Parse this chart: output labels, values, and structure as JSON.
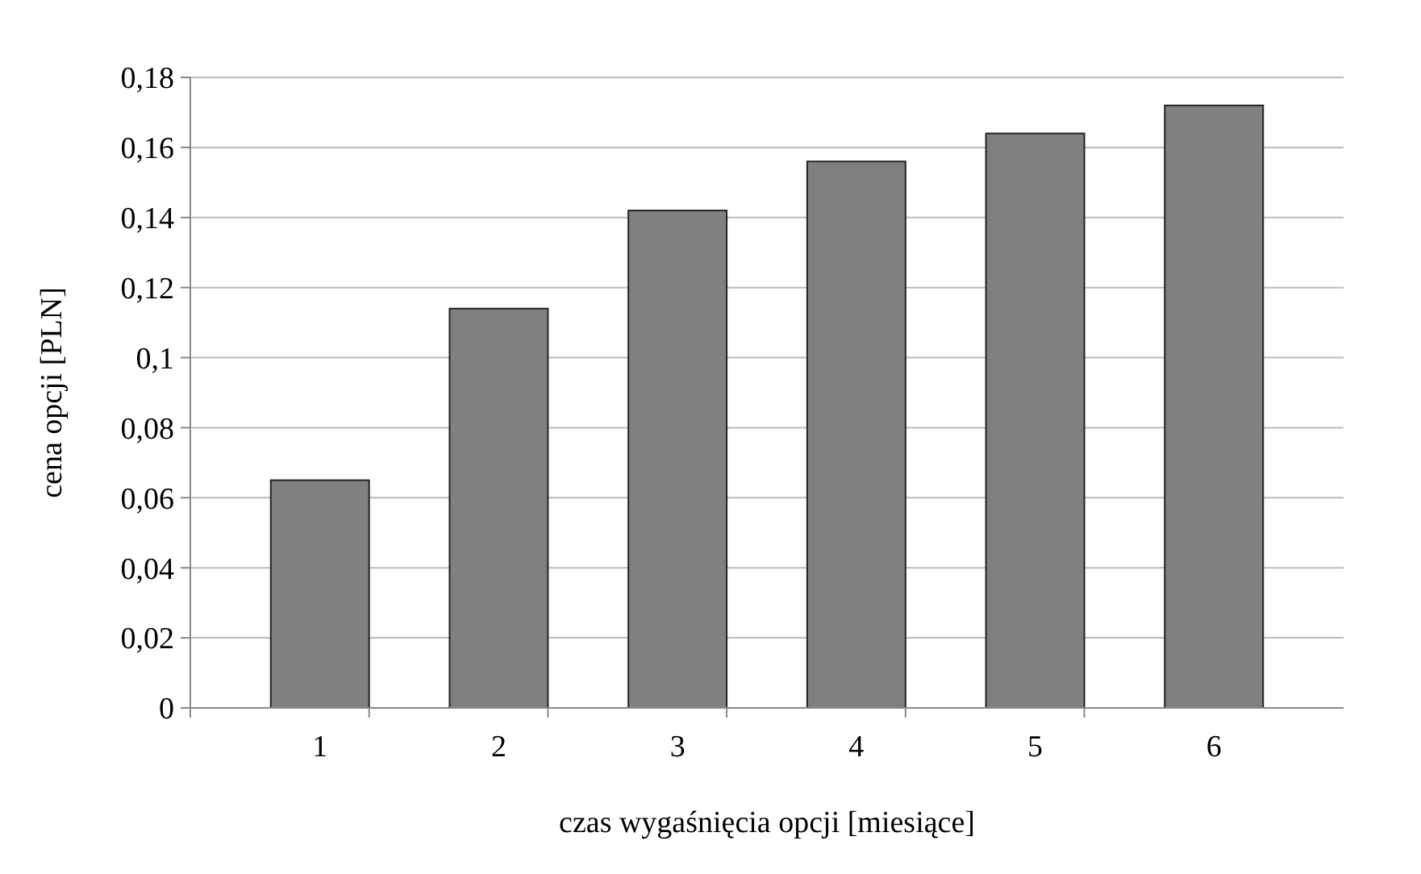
{
  "chart_data": {
    "type": "bar",
    "xlabel": "czas wygaśnięcia opcji [miesiące]",
    "ylabel": "cena opcji [PLN]",
    "categories": [
      "1",
      "2",
      "3",
      "4",
      "5",
      "6"
    ],
    "values": [
      0.065,
      0.114,
      0.142,
      0.156,
      0.164,
      0.172
    ],
    "color": "#808080",
    "ylim": [
      0,
      0.18
    ],
    "yticks": [
      0,
      {
        "value": 0.02,
        "label": "0,02"
      },
      {
        "value": 0.04,
        "label": "0,04"
      },
      {
        "value": 0.06,
        "label": "0,06"
      },
      {
        "value": 0.08,
        "label": "0,08"
      },
      {
        "value": 0.1,
        "label": "0,1"
      },
      {
        "value": 0.12,
        "label": "0,12"
      },
      {
        "value": 0.14,
        "label": "0,14"
      },
      {
        "value": 0.16,
        "label": "0,16"
      },
      {
        "value": 0.18,
        "label": "0,18"
      }
    ],
    "grid": true
  }
}
